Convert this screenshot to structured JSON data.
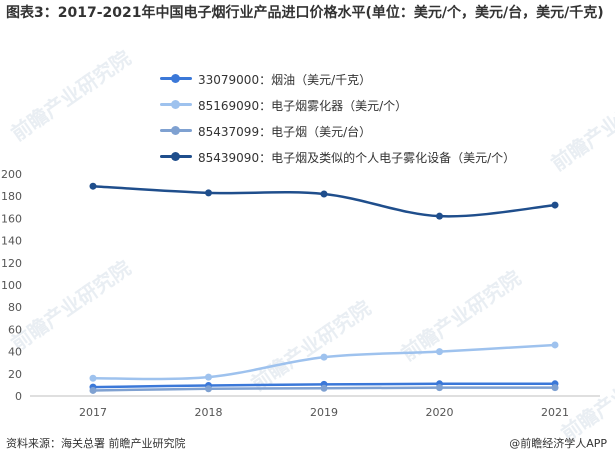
{
  "page": {
    "title": "图表3：2017-2021年中国电子烟行业产品进口价格水平(单位：美元/个，美元/台，美元/千克)",
    "source": "资料来源：海关总署 前瞻产业研究院",
    "brand": "@前瞻经济学人APP",
    "watermark": "前瞻产业研究院"
  },
  "chart_data": {
    "type": "line",
    "title": "图表3：2017-2021年中国电子烟行业产品进口价格水平(单位：美元/个，美元/台，美元/千克)",
    "categories": [
      "2017",
      "2018",
      "2019",
      "2020",
      "2021"
    ],
    "ylim": [
      0,
      200
    ],
    "yticks": [
      0,
      20,
      40,
      60,
      80,
      100,
      120,
      140,
      160,
      180,
      200
    ],
    "grid": false,
    "legend_position": "top",
    "series": [
      {
        "name": "33079000：烟油（美元/千克）",
        "color": "#3b78d8",
        "values": [
          8,
          9.5,
          10.5,
          11,
          11
        ]
      },
      {
        "name": "85169090：电子烟雾化器（美元/个）",
        "color": "#9ec2ee",
        "values": [
          16,
          17,
          35,
          40,
          46
        ]
      },
      {
        "name": "85437099：电子烟（美元/台）",
        "color": "#7fa1d1",
        "values": [
          5,
          6.5,
          7,
          7.5,
          7.5
        ]
      },
      {
        "name": "85439090：电子烟及类似的个人电子雾化设备（美元/个）",
        "color": "#1f4e8c",
        "values": [
          189,
          183,
          182,
          162,
          172
        ]
      }
    ]
  }
}
